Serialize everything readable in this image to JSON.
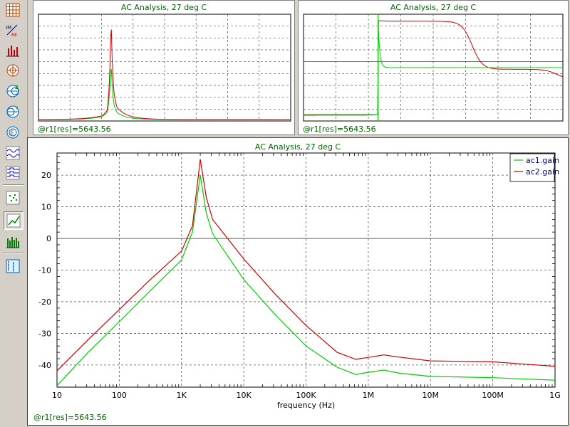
{
  "toolbar": {
    "tools": [
      {
        "name": "grid-tool-icon",
        "pressed": false
      },
      {
        "name": "im-re-tool-icon",
        "pressed": false
      },
      {
        "name": "histogram-tool-icon",
        "pressed": false
      },
      {
        "name": "polar-tool-icon",
        "pressed": false
      },
      {
        "name": "smith-z-tool-icon",
        "pressed": false
      },
      {
        "name": "smith-y-tool-icon",
        "pressed": false
      },
      {
        "name": "smith-zy-tool-icon",
        "pressed": false
      },
      {
        "name": "waveform-tool-icon",
        "pressed": false
      },
      {
        "name": "digital-waveform-tool-icon",
        "pressed": false
      },
      {
        "name": "scatter-tool-icon",
        "pressed": false
      },
      {
        "name": "line-plot-tool-icon",
        "pressed": true
      },
      {
        "name": "bar-plot-tool-icon",
        "pressed": false
      },
      {
        "name": "monte-carlo-tool-icon",
        "pressed": false
      }
    ]
  },
  "panels": {
    "top_left": {
      "title": "AC Analysis, 27 deg C",
      "status": "@r1[res]=5643.56"
    },
    "top_right": {
      "title": "AC Analysis, 27 deg C",
      "status": "@r1[res]=5643.56"
    },
    "main": {
      "title": "AC Analysis, 27 deg C",
      "status": "@r1[res]=5643.56"
    }
  },
  "chart_data": {
    "type": "line",
    "title": "AC Analysis, 27 deg C",
    "xlabel": "frequency (Hz)",
    "ylabel": "",
    "x_scale": "log",
    "xlim": [
      10,
      1000000000
    ],
    "ylim": [
      -47,
      27
    ],
    "x_ticks": [
      10,
      100,
      1000,
      10000,
      100000,
      1000000,
      10000000,
      100000000,
      1000000000
    ],
    "x_tick_labels": [
      "10",
      "100",
      "1K",
      "10K",
      "100K",
      "1M",
      "10M",
      "100M",
      "1G"
    ],
    "y_ticks": [
      -40,
      -30,
      -20,
      -10,
      0,
      10,
      20
    ],
    "y_tick_labels": [
      "-40",
      "-30",
      "-20",
      "-10",
      "0",
      "10",
      "20"
    ],
    "grid": true,
    "legend": "top-right",
    "colors": {
      "ac1.gain": "#00cc00",
      "ac2.gain": "#cc0000"
    },
    "series": [
      {
        "name": "ac1.gain",
        "values": [
          [
            10,
            -46.5
          ],
          [
            31.6,
            -36
          ],
          [
            100,
            -26.3
          ],
          [
            316,
            -16.5
          ],
          [
            1000,
            -6.8
          ],
          [
            1500,
            2
          ],
          [
            2000,
            20
          ],
          [
            2500,
            8
          ],
          [
            3160,
            1.5
          ],
          [
            10000,
            -13
          ],
          [
            31600,
            -24
          ],
          [
            100000,
            -34
          ],
          [
            316000,
            -40.7
          ],
          [
            630000,
            -43
          ],
          [
            1000000,
            -42.3
          ],
          [
            1780000,
            -41.6
          ],
          [
            3160000,
            -42.6
          ],
          [
            10000000,
            -43.6
          ],
          [
            100000000,
            -44
          ],
          [
            1000000000,
            -44.8
          ]
        ]
      },
      {
        "name": "ac2.gain",
        "values": [
          [
            10,
            -41.8
          ],
          [
            31.6,
            -32
          ],
          [
            100,
            -22.5
          ],
          [
            316,
            -13
          ],
          [
            1000,
            -4
          ],
          [
            1500,
            4
          ],
          [
            2000,
            25
          ],
          [
            2500,
            13
          ],
          [
            3160,
            6
          ],
          [
            10000,
            -6.5
          ],
          [
            31600,
            -17.5
          ],
          [
            100000,
            -27.5
          ],
          [
            316000,
            -36
          ],
          [
            630000,
            -38.2
          ],
          [
            1000000,
            -37.6
          ],
          [
            1780000,
            -36.8
          ],
          [
            3160000,
            -37.5
          ],
          [
            10000000,
            -38.7
          ],
          [
            100000000,
            -39
          ],
          [
            1000000000,
            -40.4
          ]
        ]
      }
    ]
  }
}
